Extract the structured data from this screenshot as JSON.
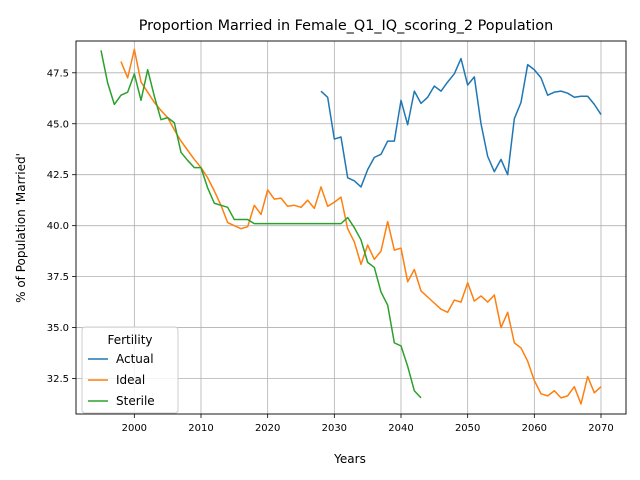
{
  "chart_data": {
    "type": "line",
    "title": "Proportion Married in Female_Q1_IQ_scoring_2 Population",
    "xlabel": "Years",
    "ylabel": "% of Population 'Married'",
    "xlim": [
      1991.25,
      2073.75
    ],
    "ylim": [
      30.76,
      49.06
    ],
    "x_ticks": [
      2000,
      2010,
      2020,
      2030,
      2040,
      2050,
      2060,
      2070
    ],
    "y_ticks": [
      32.5,
      35.0,
      37.5,
      40.0,
      42.5,
      45.0,
      47.5
    ],
    "x_tick_labels": [
      "2000",
      "2010",
      "2020",
      "2030",
      "2040",
      "2050",
      "2060",
      "2070"
    ],
    "y_tick_labels": [
      "32.5",
      "35.0",
      "37.5",
      "40.0",
      "42.5",
      "45.0",
      "47.5"
    ],
    "grid": true,
    "legend": {
      "title": "Fertility",
      "position": "lower-left"
    },
    "series": [
      {
        "name": "Actual",
        "color": "#1f77b4",
        "x": [
          2028,
          2029,
          2030,
          2031,
          2032,
          2033,
          2034,
          2035,
          2036,
          2037,
          2038,
          2039,
          2040,
          2041,
          2042,
          2043,
          2044,
          2045,
          2046,
          2047,
          2048,
          2049,
          2050,
          2051,
          2052,
          2053,
          2054,
          2055,
          2056,
          2057,
          2058,
          2059,
          2060,
          2061,
          2062,
          2063,
          2064,
          2065,
          2066,
          2067,
          2068,
          2069,
          2070
        ],
        "values": [
          46.6,
          46.3,
          44.25,
          44.35,
          42.35,
          42.2,
          41.9,
          42.75,
          43.35,
          43.5,
          44.15,
          44.15,
          46.15,
          44.95,
          46.6,
          46.0,
          46.3,
          46.85,
          46.6,
          47.05,
          47.45,
          48.2,
          46.9,
          47.3,
          45.0,
          43.4,
          42.65,
          43.25,
          42.5,
          45.25,
          46.05,
          47.9,
          47.65,
          47.25,
          46.4,
          46.55,
          46.6,
          46.5,
          46.3,
          46.35,
          46.35,
          45.95,
          45.45
        ]
      },
      {
        "name": "Ideal",
        "color": "#ff7f0e",
        "x": [
          1998,
          1999,
          2000,
          2001,
          2002,
          2003,
          2004,
          2005,
          2006,
          2007,
          2008,
          2009,
          2010,
          2011,
          2012,
          2013,
          2014,
          2015,
          2016,
          2017,
          2018,
          2019,
          2020,
          2021,
          2022,
          2023,
          2024,
          2025,
          2026,
          2027,
          2028,
          2029,
          2030,
          2031,
          2032,
          2033,
          2034,
          2035,
          2036,
          2037,
          2038,
          2039,
          2040,
          2041,
          2042,
          2043,
          2044,
          2045,
          2046,
          2047,
          2048,
          2049,
          2050,
          2051,
          2052,
          2053,
          2054,
          2055,
          2056,
          2057,
          2058,
          2059,
          2060,
          2061,
          2062,
          2063,
          2064,
          2065,
          2066,
          2067,
          2068,
          2069,
          2070
        ],
        "values": [
          48.05,
          47.25,
          48.65,
          47.05,
          46.55,
          46.05,
          45.65,
          45.3,
          44.7,
          44.15,
          43.7,
          43.25,
          42.85,
          42.35,
          41.7,
          41.0,
          40.15,
          40.0,
          39.85,
          39.95,
          41.0,
          40.55,
          41.75,
          41.3,
          41.35,
          40.95,
          41.0,
          40.9,
          41.25,
          40.85,
          41.9,
          40.95,
          41.15,
          41.4,
          39.85,
          39.2,
          38.1,
          39.05,
          38.35,
          38.75,
          40.2,
          38.8,
          38.9,
          37.25,
          37.85,
          36.8,
          36.5,
          36.2,
          35.9,
          35.75,
          36.35,
          36.25,
          37.2,
          36.3,
          36.55,
          36.25,
          36.6,
          35.0,
          35.75,
          34.25,
          34.0,
          33.35,
          32.4,
          31.75,
          31.65,
          31.9,
          31.55,
          31.65,
          32.1,
          31.25,
          32.6,
          31.8,
          32.1
        ]
      },
      {
        "name": "Sterile",
        "color": "#2ca02c",
        "x": [
          1995,
          1996,
          1997,
          1998,
          1999,
          2000,
          2001,
          2002,
          2003,
          2004,
          2005,
          2006,
          2007,
          2008,
          2009,
          2010,
          2011,
          2012,
          2013,
          2014,
          2015,
          2016,
          2017,
          2018,
          2019,
          2020,
          2021,
          2022,
          2023,
          2024,
          2025,
          2026,
          2027,
          2028,
          2029,
          2030,
          2031,
          2032,
          2033,
          2034,
          2035,
          2036,
          2037,
          2038,
          2039,
          2040,
          2041,
          2042,
          2043
        ],
        "values": [
          48.6,
          47.0,
          45.95,
          46.4,
          46.55,
          47.45,
          46.15,
          47.65,
          46.35,
          45.2,
          45.3,
          45.05,
          43.6,
          43.2,
          42.85,
          42.85,
          41.85,
          41.1,
          41.0,
          40.9,
          40.3,
          40.3,
          40.3,
          40.1,
          40.1,
          40.1,
          40.1,
          40.1,
          40.1,
          40.1,
          40.1,
          40.1,
          40.1,
          40.1,
          40.1,
          40.1,
          40.1,
          40.4,
          39.9,
          39.3,
          38.2,
          37.95,
          36.75,
          36.1,
          34.25,
          34.1,
          33.1,
          31.9,
          31.55
        ]
      }
    ]
  }
}
